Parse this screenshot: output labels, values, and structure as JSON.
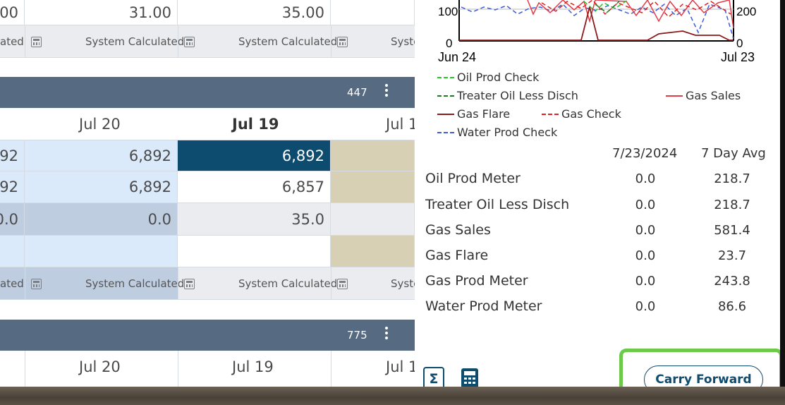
{
  "grid_top": {
    "values": [
      "00",
      "31.00",
      "35.00"
    ],
    "syscalc": [
      "ated",
      "System Calculated",
      "System Calculated",
      "Syste"
    ]
  },
  "section1": {
    "count": "447",
    "dates": [
      "Jul 20",
      "Jul 19",
      "Jul 1"
    ],
    "rows": [
      [
        "92",
        "6,892",
        "6,892"
      ],
      [
        "92",
        "6,892",
        "6,857"
      ],
      [
        "0.0",
        "0.0",
        "35.0"
      ]
    ],
    "syscalc": [
      "ated",
      "System Calculated",
      "System Calculated",
      "Syste"
    ]
  },
  "section2": {
    "count": "775",
    "dates": [
      "Jul 20",
      "Jul 19",
      "Jul 1"
    ]
  },
  "chart": {
    "y_left_ticks": [
      "100",
      "0"
    ],
    "y_right_ticks": [
      "200",
      "0"
    ],
    "x_start": "Jun 24",
    "x_end": "Jul 23"
  },
  "chart_data": {
    "type": "line",
    "x_range": [
      "Jun 24",
      "Jul 23"
    ],
    "left_axis_ticks": [
      0,
      100
    ],
    "right_axis_ticks": [
      0,
      200
    ],
    "series": [
      {
        "name": "Oil Prod Check",
        "style": "dashed",
        "color": "#22cc22"
      },
      {
        "name": "Treater Oil Less Disch",
        "style": "dashed",
        "color": "#1e7a1e"
      },
      {
        "name": "Gas Sales",
        "style": "solid",
        "color": "#e23c4a"
      },
      {
        "name": "Gas Flare",
        "style": "solid",
        "color": "#8b1a1a"
      },
      {
        "name": "Gas Check",
        "style": "dashed",
        "color": "#e02020"
      },
      {
        "name": "Water Prod Check",
        "style": "dashed",
        "color": "#3b5bdb"
      }
    ]
  },
  "legend": {
    "oil_prod_check": "Oil Prod Check",
    "treater": "Treater Oil Less Disch",
    "gas_sales": "Gas Sales",
    "gas_flare": "Gas Flare",
    "gas_check": "Gas Check",
    "water_prod_check": "Water Prod Check"
  },
  "stats": {
    "col_date": "7/23/2024",
    "col_avg": "7 Day Avg",
    "rows": [
      {
        "label": "Oil Prod Meter",
        "today": "0.0",
        "avg": "218.7"
      },
      {
        "label": "Treater Oil Less Disch",
        "today": "0.0",
        "avg": "218.7"
      },
      {
        "label": "Gas Sales",
        "today": "0.0",
        "avg": "581.4"
      },
      {
        "label": "Gas Flare",
        "today": "0.0",
        "avg": "23.7"
      },
      {
        "label": "Gas Prod Meter",
        "today": "0.0",
        "avg": "243.8"
      },
      {
        "label": "Water Prod Meter",
        "today": "0.0",
        "avg": "86.6"
      }
    ]
  },
  "actions": {
    "sigma": "Σ",
    "carry_forward": "Carry Forward"
  },
  "icons": {
    "sigma": "sigma-icon",
    "calculator": "calculator-icon",
    "kebab": "kebab-menu-icon"
  }
}
